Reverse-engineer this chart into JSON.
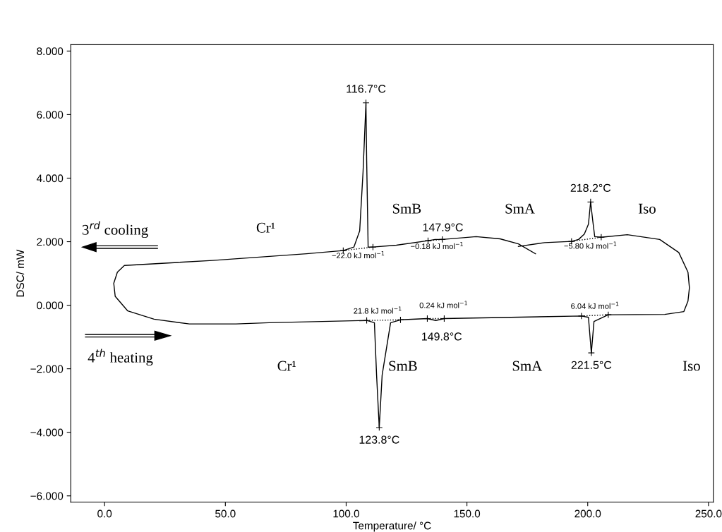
{
  "chart_data": {
    "type": "line",
    "xlabel": "Temperature/ °C",
    "ylabel": "DSC/ mW",
    "xlim": [
      -14,
      252
    ],
    "ylim": [
      -6.2,
      8.2
    ],
    "xticks": [
      {
        "value": 0,
        "label": "0.0"
      },
      {
        "value": 50,
        "label": "50.0"
      },
      {
        "value": 100,
        "label": "100.0"
      },
      {
        "value": 150,
        "label": "150.0"
      },
      {
        "value": 200,
        "label": "200.0"
      },
      {
        "value": 250,
        "label": "250.0"
      }
    ],
    "yticks": [
      {
        "value": -6,
        "label": "−6.000"
      },
      {
        "value": -4,
        "label": "−4.000"
      },
      {
        "value": -2,
        "label": "−2.000"
      },
      {
        "value": 0,
        "label": "0.000"
      },
      {
        "value": 2,
        "label": "2.000"
      },
      {
        "value": 4,
        "label": "4.000"
      },
      {
        "value": 6,
        "label": "6.000"
      },
      {
        "value": 8,
        "label": "8.000"
      }
    ],
    "grid": false,
    "legend": false,
    "series": [
      {
        "color": "#000000",
        "marker": "none",
        "line_style": "solid",
        "x": [
          178.4,
          171.3,
          163.7,
          153.8,
          139.8,
          136.8,
          133.9,
          120.8,
          111.1,
          109.1,
          108.5,
          108.2,
          107.0,
          105.6,
          103.2,
          98.8,
          83.6,
          44.7,
          8.2,
          5.3,
          3.8,
          4.4,
          9.6,
          20.5,
          35.1,
          54.4,
          68.1,
          108.5,
          111.7,
          112.6,
          113.7,
          114.9,
          118.4,
          122.5,
          133.6,
          137.1,
          140.6,
          197.4,
          200.3,
          201.5,
          202.6,
          208.5,
          231.9,
          239.8,
          241.5,
          242.1,
          241.5,
          237.7,
          229.8,
          216.4,
          205.6,
          202.9,
          202.1,
          201.2,
          200.3,
          198.6,
          196.2,
          193.3,
          182.2,
          171.3
        ],
        "values": [
          1.62,
          1.93,
          2.09,
          2.16,
          2.07,
          2.07,
          2.03,
          1.89,
          1.83,
          1.83,
          4.55,
          6.37,
          4.2,
          2.34,
          1.83,
          1.72,
          1.62,
          1.41,
          1.25,
          1.04,
          0.69,
          0.28,
          -0.18,
          -0.44,
          -0.59,
          -0.59,
          -0.55,
          -0.48,
          -0.55,
          -2.2,
          -3.85,
          -2.2,
          -0.55,
          -0.46,
          -0.42,
          -0.48,
          -0.42,
          -0.34,
          -0.38,
          -1.5,
          -0.51,
          -0.3,
          -0.29,
          -0.2,
          0.13,
          0.55,
          1.04,
          1.66,
          2.07,
          2.22,
          2.14,
          2.16,
          2.65,
          3.25,
          2.55,
          2.24,
          2.07,
          2.01,
          1.97,
          1.85
        ]
      },
      {
        "type": "line",
        "color": "#000000",
        "marker": "none",
        "line_style": "dotted",
        "x": [
          98.8,
          111.1,
          null,
          133.9,
          139.8,
          null,
          193.3,
          205.6,
          null,
          108.5,
          122.5,
          null,
          133.6,
          140.6,
          null,
          197.4,
          208.5
        ],
        "values": [
          1.72,
          1.83,
          null,
          2.03,
          2.07,
          null,
          2.01,
          2.14,
          null,
          -0.48,
          -0.46,
          null,
          -0.42,
          -0.42,
          null,
          -0.34,
          -0.3
        ]
      },
      {
        "type": "scatter",
        "color": "#000000",
        "marker": "cross",
        "x": [
          98.8,
          111.1,
          108.2,
          133.9,
          139.8,
          193.3,
          205.6,
          201.2,
          108.5,
          122.5,
          113.7,
          133.6,
          140.6,
          197.4,
          208.5,
          201.5
        ],
        "values": [
          1.72,
          1.83,
          6.37,
          2.03,
          2.07,
          2.01,
          2.14,
          3.25,
          -0.48,
          -0.46,
          -3.85,
          -0.42,
          -0.42,
          -0.34,
          -0.3,
          -1.5
        ]
      }
    ],
    "annotations": [
      {
        "text": "116.7°C",
        "x": 108.2,
        "y": 6.37
      },
      {
        "text": "218.2°C",
        "x": 201.2,
        "y": 3.25
      },
      {
        "text": "147.9°C",
        "x": 136.8,
        "y": 2.07
      },
      {
        "text": "−22.0 kJ mol$^{−1}$",
        "x": 105,
        "y": 1.78
      },
      {
        "text": "−0.18 kJ mol$^{−1}$",
        "x": 136.8,
        "y": 2.07
      },
      {
        "text": "−5.80 kJ mol$^{−1}$",
        "x": 199.5,
        "y": 2.08
      },
      {
        "text": "21.8 kJ mol$^{−1}$",
        "x": 115.5,
        "y": -0.47
      },
      {
        "text": "0.24 kJ mol$^{−1}$",
        "x": 137.1,
        "y": -0.48
      },
      {
        "text": "6.04 kJ mol$^{−1}$",
        "x": 203,
        "y": -0.32
      },
      {
        "text": "123.8°C",
        "x": 113.7,
        "y": -3.85
      },
      {
        "text": "149.8°C",
        "x": 137.1,
        "y": -0.48
      },
      {
        "text": "221.5°C",
        "x": 201.5,
        "y": -1.5
      },
      "3$^{rd}$ cooling",
      "4$^{th}$ heating",
      "Cr¹",
      "SmB",
      "SmA",
      "Iso",
      "Cr¹",
      "SmB",
      "SmA",
      "Iso"
    ]
  }
}
